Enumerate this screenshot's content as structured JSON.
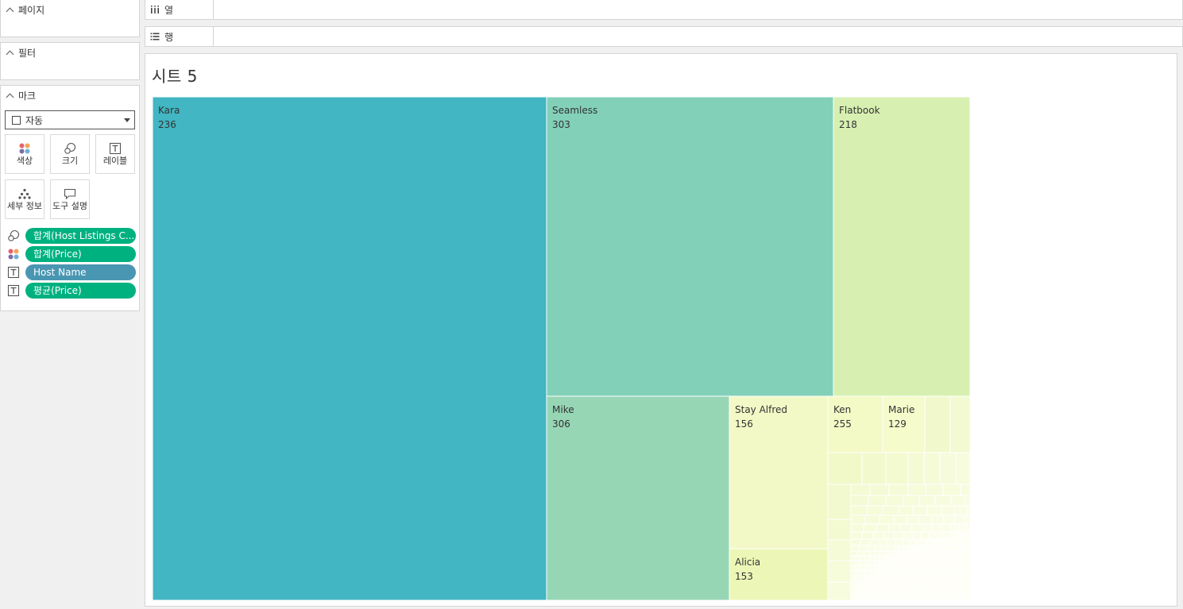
{
  "side_panel": {
    "pages_title": "페이지",
    "filters_title": "필터",
    "marks_title": "마크",
    "mark_type": "자동",
    "mark_buttons": {
      "color": "색상",
      "size": "크기",
      "label": "레이블",
      "detail": "세부 정보",
      "tooltip": "도구 설명"
    },
    "pills": [
      {
        "text": "합계(Host Listings C...",
        "icon": "size-icon",
        "color": "#00b180"
      },
      {
        "text": "합계(Price)",
        "icon": "color-icon",
        "color": "#00b180"
      },
      {
        "text": "Host Name",
        "icon": "text-label-icon",
        "color": "#4996b2"
      },
      {
        "text": "평균(Price)",
        "icon": "text-label-icon",
        "color": "#00b180"
      }
    ]
  },
  "shelves": {
    "columns_label": "열",
    "rows_label": "행"
  },
  "sheet": {
    "title": "시트 5"
  },
  "chart_data": {
    "type": "treemap",
    "size_measure": "합계(Host Listings Count)",
    "color_measure": "합계(Price)",
    "label_fields": [
      "Host Name",
      "평균(Price)"
    ],
    "labeled_items": [
      {
        "name": "Kara",
        "avg_price": 236,
        "color": "#42b6c2"
      },
      {
        "name": "Seamless",
        "avg_price": 303,
        "color": "#82d0b8"
      },
      {
        "name": "Flatbook",
        "avg_price": 218,
        "color": "#d7f0b1"
      },
      {
        "name": "Mike",
        "avg_price": 306,
        "color": "#97d6b5"
      },
      {
        "name": "Stay Alfred",
        "avg_price": 156,
        "color": "#f3f9c6"
      },
      {
        "name": "Ken",
        "avg_price": 255,
        "color": "#f3fac6"
      },
      {
        "name": "Marie",
        "avg_price": 129,
        "color": "#f5fbcb"
      },
      {
        "name": "Alicia",
        "avg_price": 153,
        "color": "#ecf7b7"
      }
    ]
  }
}
